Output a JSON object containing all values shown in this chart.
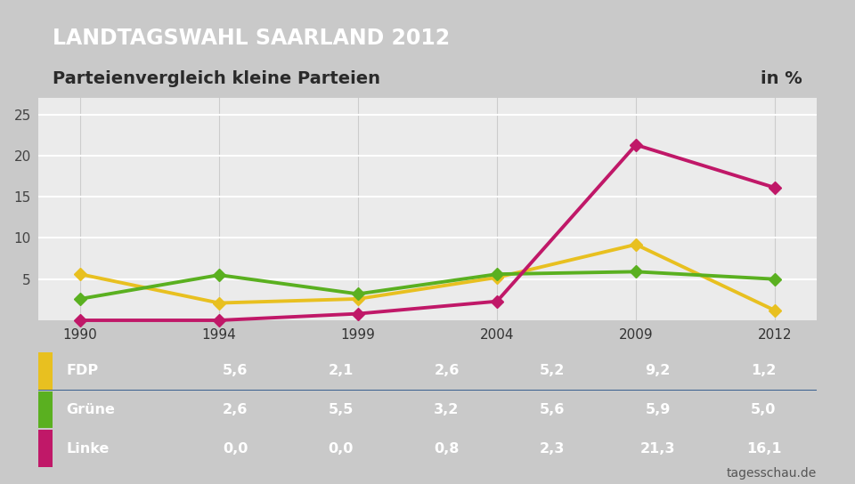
{
  "title": "LANDTAGSWAHL SAARLAND 2012",
  "subtitle": "Parteienvergleich kleine Parteien",
  "subtitle_right": "in %",
  "title_bg_color": "#1c3d6e",
  "subtitle_bg_color": "#f5f5f5",
  "chart_bg_color": "#ebebeb",
  "table_bg_color": "#4472a8",
  "outer_bg_color": "#c9c9c9",
  "source": "tagesschau.de",
  "years": [
    1990,
    1994,
    1999,
    2004,
    2009,
    2012
  ],
  "series": [
    {
      "name": "FDP",
      "values": [
        5.6,
        2.1,
        2.6,
        5.2,
        9.2,
        1.2
      ],
      "color": "#e8c020",
      "linewidth": 2.8
    },
    {
      "name": "Grüne",
      "values": [
        2.6,
        5.5,
        3.2,
        5.6,
        5.9,
        5.0
      ],
      "color": "#5ab020",
      "linewidth": 2.8
    },
    {
      "name": "Linke",
      "values": [
        0.0,
        0.0,
        0.8,
        2.3,
        21.3,
        16.1
      ],
      "color": "#c01868",
      "linewidth": 2.8
    }
  ],
  "yticks": [
    5,
    10,
    15,
    20,
    25
  ],
  "ylim": [
    0,
    27
  ],
  "title_fontsize": 17,
  "subtitle_fontsize": 14,
  "axis_fontsize": 11,
  "table_fontsize": 11.5,
  "source_fontsize": 10
}
